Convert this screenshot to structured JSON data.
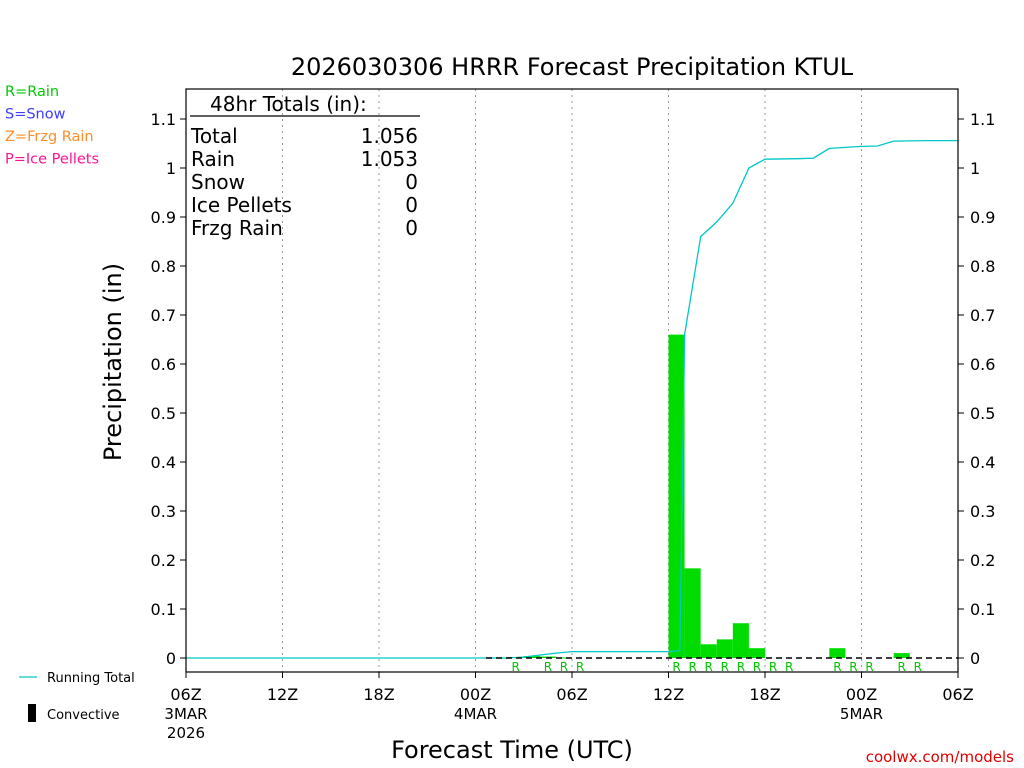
{
  "chart_data": {
    "type": "bar",
    "title": "2026030306 HRRR Forecast Precipitation KTUL",
    "xlabel": "Forecast Time (UTC)",
    "ylabel": "Precipitation (in)",
    "ylim": [
      0,
      1.15
    ],
    "xlim_hours": [
      0,
      48
    ],
    "grid": "vertical dotted lines every 6 hours",
    "y_ticks": [
      "0",
      "0.1",
      "0.2",
      "0.3",
      "0.4",
      "0.5",
      "0.6",
      "0.7",
      "0.8",
      "0.9",
      "1",
      "1.1"
    ],
    "y_tick_values": [
      0,
      0.1,
      0.2,
      0.3,
      0.4,
      0.5,
      0.6,
      0.7,
      0.8,
      0.9,
      1.0,
      1.1
    ],
    "x_ticks": [
      {
        "hour": 0,
        "label": "06Z",
        "date": "3MAR",
        "year": "2026"
      },
      {
        "hour": 6,
        "label": "12Z"
      },
      {
        "hour": 12,
        "label": "18Z"
      },
      {
        "hour": 18,
        "label": "00Z",
        "date": "4MAR"
      },
      {
        "hour": 24,
        "label": "06Z"
      },
      {
        "hour": 30,
        "label": "12Z"
      },
      {
        "hour": 36,
        "label": "18Z"
      },
      {
        "hour": 42,
        "label": "00Z",
        "date": "5MAR"
      },
      {
        "hour": 48,
        "label": "06Z"
      }
    ],
    "hourly_precip": [
      {
        "hour": 20,
        "value": 0.001
      },
      {
        "hour": 21,
        "value": 0.002
      },
      {
        "hour": 22,
        "value": 0.004
      },
      {
        "hour": 23,
        "value": 0.003
      },
      {
        "hour": 24,
        "value": 0.001
      },
      {
        "hour": 31,
        "value": 0.66
      },
      {
        "hour": 32,
        "value": 0.183
      },
      {
        "hour": 33,
        "value": 0.028
      },
      {
        "hour": 34,
        "value": 0.038
      },
      {
        "hour": 35,
        "value": 0.071
      },
      {
        "hour": 36,
        "value": 0.02
      },
      {
        "hour": 41,
        "value": 0.02
      },
      {
        "hour": 45,
        "value": 0.01
      }
    ],
    "running_total": [
      [
        0,
        0
      ],
      [
        20,
        0.0
      ],
      [
        21,
        0.002
      ],
      [
        22,
        0.006
      ],
      [
        23,
        0.01
      ],
      [
        24,
        0.013
      ],
      [
        30,
        0.013
      ],
      [
        30.7,
        0.015
      ],
      [
        31,
        0.66
      ],
      [
        32,
        0.86
      ],
      [
        33,
        0.89
      ],
      [
        34,
        0.928
      ],
      [
        35,
        1.0
      ],
      [
        36,
        1.018
      ],
      [
        38,
        1.019
      ],
      [
        39,
        1.02
      ],
      [
        40,
        1.04
      ],
      [
        42,
        1.044
      ],
      [
        43,
        1.045
      ],
      [
        44,
        1.055
      ],
      [
        46,
        1.056
      ],
      [
        48,
        1.056
      ]
    ],
    "ptype_marks": [
      {
        "hour": 20.5,
        "type": "R"
      },
      {
        "hour": 22.5,
        "type": "R"
      },
      {
        "hour": 23.5,
        "type": "R"
      },
      {
        "hour": 24.5,
        "type": "R"
      },
      {
        "hour": 30.5,
        "type": "R"
      },
      {
        "hour": 31.5,
        "type": "R"
      },
      {
        "hour": 32.5,
        "type": "R"
      },
      {
        "hour": 33.5,
        "type": "R"
      },
      {
        "hour": 34.5,
        "type": "R"
      },
      {
        "hour": 35.5,
        "type": "R"
      },
      {
        "hour": 36.5,
        "type": "R"
      },
      {
        "hour": 37.5,
        "type": "R"
      },
      {
        "hour": 40.5,
        "type": "R"
      },
      {
        "hour": 41.5,
        "type": "R"
      },
      {
        "hour": 42.5,
        "type": "R"
      },
      {
        "hour": 44.5,
        "type": "R"
      },
      {
        "hour": 45.5,
        "type": "R"
      }
    ],
    "series": [
      {
        "name": "Running Total",
        "color": "#00c8c8"
      },
      {
        "name": "Convective",
        "color": "#000000"
      }
    ],
    "bar_color": "#00dc00",
    "totals_box": {
      "header": "48hr Totals (in):",
      "rows": [
        {
          "label": "Total",
          "value": "1.056"
        },
        {
          "label": "Rain",
          "value": "1.053"
        },
        {
          "label": "Snow",
          "value": "0"
        },
        {
          "label": "Ice Pellets",
          "value": "0"
        },
        {
          "label": "Frzg Rain",
          "value": "0"
        }
      ]
    },
    "ptype_legend": [
      {
        "text": "R=Rain",
        "color": "#00c800"
      },
      {
        "text": "S=Snow",
        "color": "#3c3cff"
      },
      {
        "text": "Z=Frzg Rain",
        "color": "#ff8c28"
      },
      {
        "text": "P=Ice Pellets",
        "color": "#ff1493"
      }
    ],
    "credit": "coolwx.com/models",
    "credit_color": "#e00000"
  }
}
